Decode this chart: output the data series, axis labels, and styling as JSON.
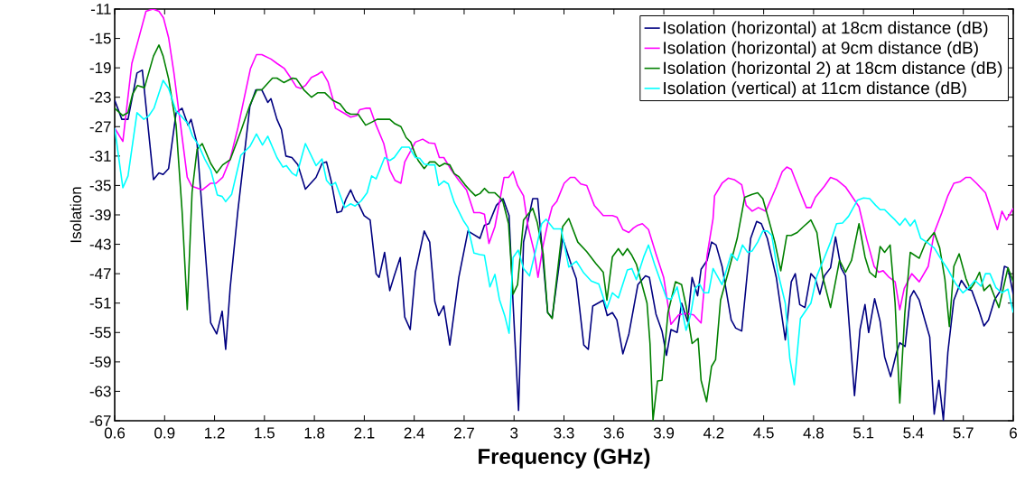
{
  "chart_data": {
    "type": "line",
    "xlabel": "Frequency (GHz)",
    "ylabel": "Isolation",
    "xlim": [
      0.6,
      6
    ],
    "ylim": [
      -67,
      -11
    ],
    "xticks": [
      0.6,
      0.9,
      1.2,
      1.5,
      1.8,
      2.1,
      2.4,
      2.7,
      3,
      3.3,
      3.6,
      3.9,
      4.2,
      4.5,
      4.8,
      5.1,
      5.4,
      5.7,
      6
    ],
    "yticks": [
      -11,
      -15,
      -19,
      -23,
      -27,
      -31,
      -35,
      -39,
      -43,
      -47,
      -51,
      -55,
      -59,
      -63,
      -67
    ],
    "legend": "top right",
    "series": [
      {
        "name": "Isolation (horizontal) at 18cm distance (dB)",
        "color": "#000080",
        "x": [
          0.6,
          0.643,
          0.68,
          0.734,
          0.766,
          0.833,
          0.866,
          0.891,
          0.924,
          0.969,
          1.005,
          1.041,
          1.059,
          1.095,
          1.177,
          1.213,
          1.246,
          1.267,
          1.294,
          1.34,
          1.412,
          1.448,
          1.484,
          1.52,
          1.539,
          1.575,
          1.602,
          1.629,
          1.665,
          1.701,
          1.746,
          1.81,
          1.846,
          1.873,
          1.9,
          1.936,
          1.963,
          1.991,
          2.018,
          2.045,
          2.063,
          2.099,
          2.135,
          2.171,
          2.189,
          2.222,
          2.253,
          2.28,
          2.316,
          2.343,
          2.376,
          2.407,
          2.46,
          2.493,
          2.524,
          2.547,
          2.578,
          2.614,
          2.668,
          2.723,
          2.795,
          2.822,
          2.849,
          2.894,
          2.934,
          2.97,
          2.994,
          3.027,
          3.057,
          3.112,
          3.142,
          3.202,
          3.229,
          3.292,
          3.347,
          3.374,
          3.419,
          3.446,
          3.473,
          3.536,
          3.56,
          3.591,
          3.618,
          3.654,
          3.69,
          3.744,
          3.79,
          3.813,
          3.853,
          3.889,
          3.916,
          3.943,
          3.98,
          4.007,
          4.043,
          4.07,
          4.103,
          4.124,
          4.16,
          4.187,
          4.214,
          4.25,
          4.305,
          4.332,
          4.368,
          4.422,
          4.458,
          4.486,
          4.522,
          4.576,
          4.63,
          4.666,
          4.69,
          4.717,
          4.748,
          4.784,
          4.811,
          4.838,
          4.865,
          4.902,
          4.932,
          4.965,
          4.992,
          5.046,
          5.079,
          5.109,
          5.131,
          5.167,
          5.2,
          5.227,
          5.263,
          5.299,
          5.318,
          5.35,
          5.381,
          5.402,
          5.435,
          5.471,
          5.498,
          5.525,
          5.553,
          5.58,
          5.607,
          5.643,
          5.688,
          5.724,
          5.751,
          5.788,
          5.824,
          5.851,
          5.887,
          5.923,
          5.947,
          5.968,
          6.0
        ],
        "values": [
          -23.4,
          -26.0,
          -26.0,
          -19.7,
          -19.3,
          -34.2,
          -33.3,
          -33.5,
          -32.7,
          -25.1,
          -24.5,
          -26.8,
          -26.0,
          -29.3,
          -53.7,
          -55.2,
          -52.1,
          -57.3,
          -48.9,
          -38.5,
          -24.3,
          -22.0,
          -22.0,
          -23.7,
          -23.2,
          -26.0,
          -27.4,
          -31.0,
          -31.2,
          -32.2,
          -35.5,
          -33.9,
          -32.0,
          -31.8,
          -34.3,
          -38.7,
          -38.5,
          -36.8,
          -35.6,
          -37.0,
          -37.4,
          -39.1,
          -39.7,
          -47.0,
          -47.5,
          -44.1,
          -49.3,
          -47.3,
          -44.8,
          -52.9,
          -54.6,
          -46.8,
          -41.2,
          -42.7,
          -50.8,
          -52.7,
          -51.4,
          -56.7,
          -47.5,
          -41.2,
          -42.2,
          -40.4,
          -40.2,
          -37.7,
          -36.8,
          -39.1,
          -51.0,
          -65.6,
          -42.7,
          -36.8,
          -36.8,
          -52.3,
          -53.0,
          -42.2,
          -46.0,
          -47.7,
          -56.7,
          -57.3,
          -51.4,
          -50.6,
          -52.7,
          -52.3,
          -53.3,
          -57.9,
          -55.2,
          -48.5,
          -47.3,
          -47.5,
          -52.5,
          -54.8,
          -58.1,
          -54.6,
          -55.0,
          -51.0,
          -53.5,
          -47.5,
          -50.0,
          -46.4,
          -45.2,
          -42.7,
          -43.1,
          -46.0,
          -53.3,
          -54.4,
          -54.8,
          -42.2,
          -39.9,
          -40.2,
          -42.2,
          -47.5,
          -56.0,
          -48.1,
          -47.0,
          -51.2,
          -51.6,
          -47.0,
          -47.7,
          -49.8,
          -47.3,
          -46.2,
          -42.0,
          -46.2,
          -47.3,
          -63.6,
          -54.6,
          -51.2,
          -55.0,
          -50.4,
          -53.5,
          -58.3,
          -61.0,
          -57.7,
          -56.4,
          -56.9,
          -50.2,
          -49.3,
          -50.6,
          -53.5,
          -55.6,
          -66.1,
          -61.5,
          -66.9,
          -57.7,
          -50.6,
          -47.9,
          -49.1,
          -49.3,
          -51.6,
          -54.1,
          -53.3,
          -50.6,
          -49.3,
          -46.0,
          -46.2,
          -49.8
        ]
      },
      {
        "name": "Isolation (horizontal) at 9cm distance (dB)",
        "color": "#ff00ff",
        "x": [
          0.6,
          0.649,
          0.703,
          0.743,
          0.788,
          0.83,
          0.866,
          0.893,
          0.924,
          0.956,
          0.996,
          1.036,
          1.063,
          1.126,
          1.177,
          1.209,
          1.249,
          1.294,
          1.34,
          1.416,
          1.452,
          1.484,
          1.539,
          1.575,
          1.62,
          1.656,
          1.692,
          1.719,
          1.746,
          1.782,
          1.819,
          1.846,
          1.882,
          1.927,
          1.973,
          2.018,
          2.054,
          2.072,
          2.108,
          2.135,
          2.171,
          2.217,
          2.253,
          2.284,
          2.32,
          2.343,
          2.407,
          2.451,
          2.488,
          2.524,
          2.551,
          2.578,
          2.623,
          2.668,
          2.714,
          2.759,
          2.795,
          2.822,
          2.849,
          2.885,
          2.94,
          2.967,
          2.994,
          3.021,
          3.057,
          3.084,
          3.12,
          3.144,
          3.175,
          3.202,
          3.229,
          3.256,
          3.301,
          3.338,
          3.365,
          3.401,
          3.437,
          3.482,
          3.536,
          3.591,
          3.618,
          3.654,
          3.69,
          3.717,
          3.744,
          3.771,
          3.808,
          3.853,
          3.899,
          3.943,
          3.989,
          4.034,
          4.079,
          4.124,
          4.16,
          4.196,
          4.205,
          4.25,
          4.287,
          4.323,
          4.368,
          4.395,
          4.431,
          4.468,
          4.513,
          4.576,
          4.612,
          4.639,
          4.666,
          4.721,
          4.757,
          4.784,
          4.811,
          4.865,
          4.902,
          4.938,
          4.992,
          5.028,
          5.073,
          5.119,
          5.164,
          5.191,
          5.218,
          5.254,
          5.29,
          5.318,
          5.345,
          5.39,
          5.435,
          5.489,
          5.525,
          5.571,
          5.607,
          5.643,
          5.68,
          5.716,
          5.742,
          5.779,
          5.833,
          5.869,
          5.905,
          5.932,
          5.959,
          6.0
        ],
        "values": [
          -27.2,
          -29.0,
          -18.4,
          -15.1,
          -11.3,
          -11.0,
          -11.3,
          -12.2,
          -14.9,
          -19.7,
          -26.8,
          -33.9,
          -35.1,
          -35.6,
          -34.7,
          -34.7,
          -33.9,
          -31.4,
          -27.2,
          -19.1,
          -17.2,
          -17.2,
          -17.8,
          -18.4,
          -19.1,
          -20.3,
          -21.6,
          -21.8,
          -21.4,
          -20.3,
          -19.9,
          -19.5,
          -20.9,
          -24.5,
          -25.1,
          -25.7,
          -25.5,
          -24.7,
          -24.5,
          -24.5,
          -26.8,
          -29.3,
          -32.9,
          -34.3,
          -34.7,
          -31.8,
          -29.1,
          -28.7,
          -29.2,
          -29.3,
          -31.2,
          -31.2,
          -32.9,
          -34.3,
          -35.6,
          -38.7,
          -38.7,
          -38.9,
          -42.9,
          -40.6,
          -33.9,
          -33.9,
          -33.1,
          -35.0,
          -36.4,
          -40.6,
          -43.9,
          -47.5,
          -43.1,
          -40.2,
          -37.9,
          -37.2,
          -34.7,
          -33.9,
          -33.9,
          -34.8,
          -35.0,
          -37.7,
          -39.1,
          -39.1,
          -39.3,
          -41.0,
          -41.4,
          -40.8,
          -40.4,
          -40.2,
          -41.0,
          -44.3,
          -47.5,
          -53.9,
          -52.6,
          -52.4,
          -52.6,
          -53.7,
          -44.5,
          -39.5,
          -36.4,
          -34.7,
          -34.0,
          -34.2,
          -34.9,
          -37.7,
          -38.5,
          -38.0,
          -38.5,
          -35.2,
          -33.1,
          -32.5,
          -32.8,
          -36.0,
          -38.0,
          -38.0,
          -36.6,
          -35.1,
          -33.9,
          -34.2,
          -35.2,
          -36.4,
          -37.9,
          -42.3,
          -46.0,
          -46.8,
          -46.6,
          -47.5,
          -48.1,
          -51.9,
          -49.0,
          -47.0,
          -48.1,
          -46.0,
          -41.4,
          -38.7,
          -36.4,
          -34.7,
          -34.5,
          -33.9,
          -33.9,
          -34.7,
          -36.0,
          -38.5,
          -41.0,
          -38.5,
          -39.7,
          -38.1
        ]
      },
      {
        "name": "Isolation (horizontal 2) at 18cm distance (dB)",
        "color": "#008000",
        "x": [
          0.6,
          0.649,
          0.68,
          0.707,
          0.737,
          0.779,
          0.833,
          0.866,
          0.891,
          0.924,
          0.969,
          1.005,
          1.036,
          1.065,
          1.095,
          1.126,
          1.177,
          1.213,
          1.249,
          1.294,
          1.358,
          1.412,
          1.454,
          1.484,
          1.548,
          1.575,
          1.616,
          1.669,
          1.692,
          1.737,
          1.783,
          1.819,
          1.864,
          1.909,
          1.954,
          1.991,
          2.018,
          2.063,
          2.108,
          2.144,
          2.177,
          2.253,
          2.284,
          2.32,
          2.352,
          2.379,
          2.407,
          2.424,
          2.46,
          2.493,
          2.524,
          2.551,
          2.583,
          2.614,
          2.641,
          2.668,
          2.705,
          2.741,
          2.768,
          2.795,
          2.822,
          2.849,
          2.885,
          2.931,
          2.967,
          2.994,
          3.021,
          3.057,
          3.112,
          3.139,
          3.175,
          3.202,
          3.229,
          3.256,
          3.292,
          3.329,
          3.383,
          3.437,
          3.491,
          3.536,
          3.558,
          3.591,
          3.627,
          3.654,
          3.681,
          3.708,
          3.735,
          3.762,
          3.799,
          3.817,
          3.835,
          3.862,
          3.889,
          3.925,
          3.97,
          4.007,
          4.034,
          4.07,
          4.106,
          4.124,
          4.157,
          4.187,
          4.211,
          4.241,
          4.287,
          4.341,
          4.386,
          4.431,
          4.464,
          4.495,
          4.531,
          4.567,
          4.603,
          4.639,
          4.666,
          4.702,
          4.739,
          4.784,
          4.82,
          4.856,
          4.902,
          4.956,
          4.992,
          5.028,
          5.073,
          5.109,
          5.137,
          5.173,
          5.2,
          5.227,
          5.26,
          5.29,
          5.318,
          5.348,
          5.381,
          5.435,
          5.471,
          5.525,
          5.558,
          5.589,
          5.616,
          5.643,
          5.675,
          5.716,
          5.742,
          5.766,
          5.797,
          5.824,
          5.86,
          5.896,
          5.914,
          5.947,
          5.968,
          6.0
        ],
        "values": [
          -24.5,
          -25.5,
          -25.1,
          -22.6,
          -21.4,
          -21.7,
          -17.4,
          -15.9,
          -17.4,
          -20.5,
          -26.8,
          -38.5,
          -51.9,
          -35.9,
          -30.1,
          -29.3,
          -32.0,
          -33.3,
          -32.2,
          -31.5,
          -27.6,
          -24.1,
          -22.0,
          -22.0,
          -20.4,
          -20.4,
          -21.0,
          -20.4,
          -20.5,
          -22.0,
          -23.0,
          -22.4,
          -22.4,
          -23.4,
          -23.9,
          -25.0,
          -25.3,
          -25.3,
          -26.8,
          -26.4,
          -26.0,
          -26.0,
          -26.6,
          -27.0,
          -28.5,
          -29.1,
          -30.8,
          -31.6,
          -32.7,
          -31.8,
          -31.8,
          -32.4,
          -32.0,
          -32.2,
          -33.4,
          -33.8,
          -34.9,
          -35.8,
          -36.4,
          -36.1,
          -35.4,
          -36.0,
          -36.0,
          -37.0,
          -40.2,
          -49.8,
          -48.5,
          -39.7,
          -38.1,
          -40.0,
          -44.3,
          -52.3,
          -53.1,
          -47.7,
          -40.6,
          -39.5,
          -42.7,
          -44.0,
          -45.6,
          -46.8,
          -50.6,
          -44.7,
          -43.6,
          -44.5,
          -43.6,
          -44.5,
          -45.7,
          -47.9,
          -51.0,
          -56.5,
          -66.9,
          -61.6,
          -61.5,
          -52.3,
          -48.1,
          -48.5,
          -51.4,
          -56.5,
          -55.8,
          -61.5,
          -64.4,
          -59.6,
          -58.7,
          -50.6,
          -46.8,
          -42.2,
          -36.6,
          -36.2,
          -36.0,
          -36.8,
          -39.7,
          -42.7,
          -46.6,
          -41.8,
          -41.8,
          -41.4,
          -40.6,
          -39.7,
          -41.4,
          -47.5,
          -51.6,
          -45.2,
          -46.8,
          -45.2,
          -40.2,
          -44.7,
          -46.8,
          -47.5,
          -43.3,
          -44.1,
          -43.1,
          -51.0,
          -64.6,
          -52.5,
          -44.1,
          -44.9,
          -42.9,
          -41.4,
          -43.5,
          -47.7,
          -54.2,
          -46.0,
          -44.3,
          -47.7,
          -49.1,
          -48.3,
          -46.8,
          -49.3,
          -48.5,
          -50.6,
          -51.6,
          -48.3,
          -46.2,
          -48.1
        ]
      },
      {
        "name": "Isolation (vertical) at 11cm distance (dB)",
        "color": "#00ffff",
        "x": [
          0.6,
          0.649,
          0.68,
          0.734,
          0.775,
          0.806,
          0.836,
          0.891,
          0.924,
          0.969,
          1.005,
          1.041,
          1.068,
          1.104,
          1.141,
          1.177,
          1.217,
          1.246,
          1.267,
          1.303,
          1.358,
          1.412,
          1.452,
          1.488,
          1.52,
          1.575,
          1.611,
          1.632,
          1.665,
          1.692,
          1.746,
          1.81,
          1.846,
          1.873,
          1.9,
          1.927,
          1.982,
          2.018,
          2.045,
          2.081,
          2.117,
          2.144,
          2.171,
          2.222,
          2.253,
          2.28,
          2.325,
          2.37,
          2.407,
          2.433,
          2.46,
          2.493,
          2.524,
          2.547,
          2.578,
          2.605,
          2.641,
          2.696,
          2.723,
          2.759,
          2.795,
          2.822,
          2.855,
          2.885,
          2.912,
          2.945,
          2.97,
          2.994,
          3.025,
          3.057,
          3.093,
          3.13,
          3.166,
          3.193,
          3.238,
          3.283,
          3.329,
          3.374,
          3.419,
          3.464,
          3.509,
          3.558,
          3.591,
          3.627,
          3.654,
          3.681,
          3.708,
          3.735,
          3.781,
          3.808,
          3.844,
          3.88,
          3.916,
          3.943,
          3.98,
          4.007,
          4.034,
          4.061,
          4.088,
          4.115,
          4.142,
          4.169,
          4.196,
          4.25,
          4.305,
          4.341,
          4.373,
          4.404,
          4.431,
          4.464,
          4.495,
          4.522,
          4.549,
          4.585,
          4.63,
          4.657,
          4.684,
          4.721,
          4.757,
          4.784,
          4.82,
          4.865,
          4.902,
          4.938,
          4.974,
          5.01,
          5.064,
          5.1,
          5.137,
          5.173,
          5.2,
          5.227,
          5.263,
          5.29,
          5.318,
          5.35,
          5.381,
          5.408,
          5.444,
          5.48,
          5.525,
          5.571,
          5.607,
          5.652,
          5.697,
          5.733,
          5.77,
          5.806,
          5.833,
          5.86,
          5.896,
          5.932,
          5.968,
          6.0
        ],
        "values": [
          -27.2,
          -35.3,
          -33.7,
          -25.1,
          -26.0,
          -25.5,
          -24.5,
          -20.7,
          -21.8,
          -24.9,
          -25.7,
          -26.6,
          -28.3,
          -29.5,
          -31.4,
          -32.9,
          -36.3,
          -36.5,
          -37.2,
          -36.2,
          -30.9,
          -29.7,
          -28.0,
          -29.5,
          -28.3,
          -31.2,
          -32.5,
          -32.3,
          -33.3,
          -33.7,
          -29.3,
          -32.3,
          -31.4,
          -34.3,
          -35.0,
          -34.6,
          -38.0,
          -37.5,
          -37.8,
          -37.1,
          -36.0,
          -33.7,
          -34.1,
          -31.2,
          -31.6,
          -31.2,
          -29.8,
          -29.8,
          -31.2,
          -31.3,
          -32.1,
          -32.2,
          -32.2,
          -35.0,
          -34.4,
          -34.8,
          -37.3,
          -39.8,
          -40.7,
          -44.2,
          -44.4,
          -44.5,
          -48.8,
          -47.1,
          -50.5,
          -52.8,
          -55.1,
          -44.8,
          -43.8,
          -46.3,
          -47.3,
          -43.8,
          -40.2,
          -39.6,
          -40.9,
          -40.9,
          -46.1,
          -45.3,
          -46.9,
          -48.0,
          -48.4,
          -51.7,
          -49.6,
          -50.3,
          -48.4,
          -46.5,
          -46.3,
          -47.8,
          -44.6,
          -43.1,
          -45.7,
          -48.0,
          -50.3,
          -50.5,
          -48.8,
          -51.7,
          -54.7,
          -52.6,
          -49.0,
          -48.4,
          -49.6,
          -49.6,
          -46.3,
          -48.5,
          -44.3,
          -45.2,
          -43.1,
          -44.1,
          -43.9,
          -42.7,
          -41.2,
          -41.2,
          -41.8,
          -46.8,
          -51.0,
          -58.5,
          -62.1,
          -53.1,
          -51.9,
          -51.0,
          -47.3,
          -44.8,
          -42.7,
          -40.2,
          -40.1,
          -39.2,
          -37.0,
          -36.7,
          -36.8,
          -37.7,
          -38.3,
          -38.3,
          -39.1,
          -39.7,
          -40.4,
          -39.5,
          -40.5,
          -39.7,
          -42.2,
          -42.7,
          -43.5,
          -45.2,
          -46.4,
          -48.3,
          -49.6,
          -48.9,
          -47.9,
          -48.7,
          -47.0,
          -47.0,
          -48.9,
          -49.6,
          -49.1,
          -52.3
        ]
      }
    ]
  }
}
